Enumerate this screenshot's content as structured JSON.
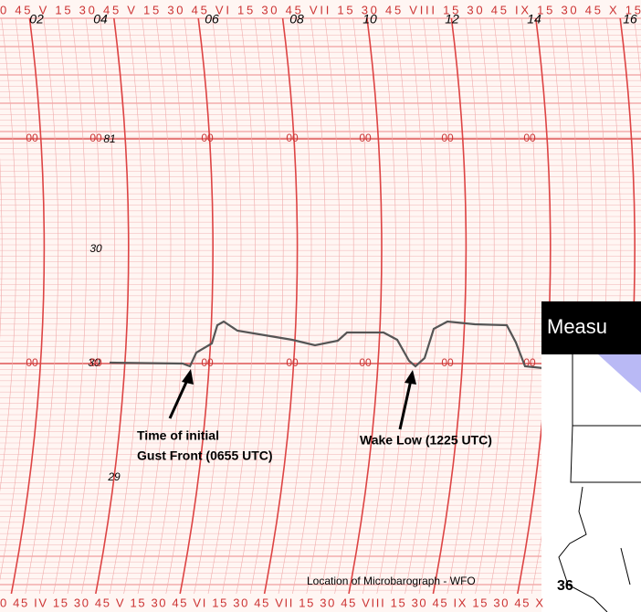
{
  "top_scale": "0 45 V 15 30 45 V 15 30 45 VI 15 30 45 VII 15 30 45 VIII 15 30 45 IX 15 30 45 X 15",
  "bottom_scale": "0 45 IV 15 30 45 V 15 30 45 VI 15 30 45 VII 15 30 45 VIII 15 30 45 IX 15 30 45 X",
  "hour_labels": [
    "02",
    "04",
    "06",
    "08",
    "10",
    "12",
    "14",
    "16"
  ],
  "pressure_labels": [
    "81",
    "30",
    "30",
    "29"
  ],
  "row_mark": "00",
  "gust_front_label": [
    "Time of initial",
    "Gust Front (0655 UTC)"
  ],
  "wake_low_label": "Wake Low (1225 UTC)",
  "caption": "Location of Microbarograph - WFO",
  "inset": {
    "title": "Measu",
    "number": "36"
  }
}
